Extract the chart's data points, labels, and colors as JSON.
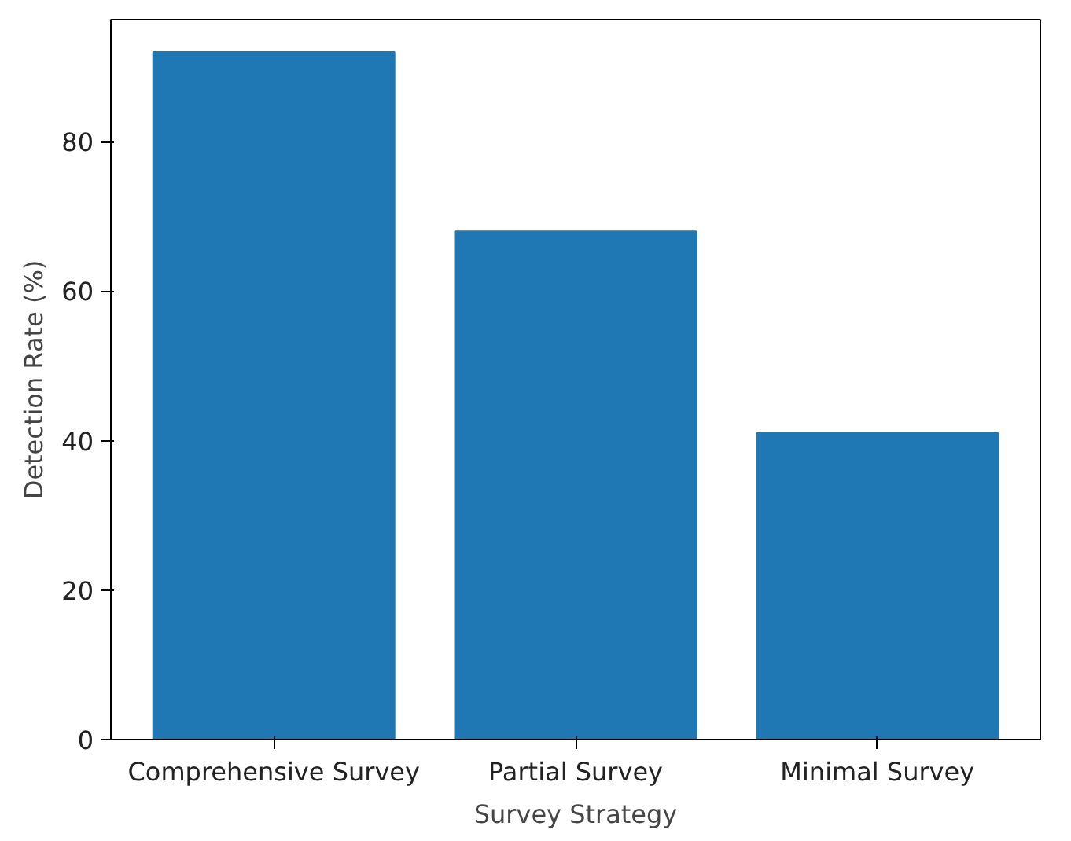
{
  "chart_data": {
    "type": "bar",
    "xlabel": "Survey Strategy",
    "ylabel": "Detection Rate (%)",
    "categories": [
      "Comprehensive Survey",
      "Partial Survey",
      "Minimal Survey"
    ],
    "values": [
      92,
      68,
      41
    ],
    "color": "#1f77b4",
    "ylim": [
      0,
      96.3
    ],
    "yticks": [
      0,
      20,
      40,
      60,
      80
    ],
    "grid": false
  }
}
